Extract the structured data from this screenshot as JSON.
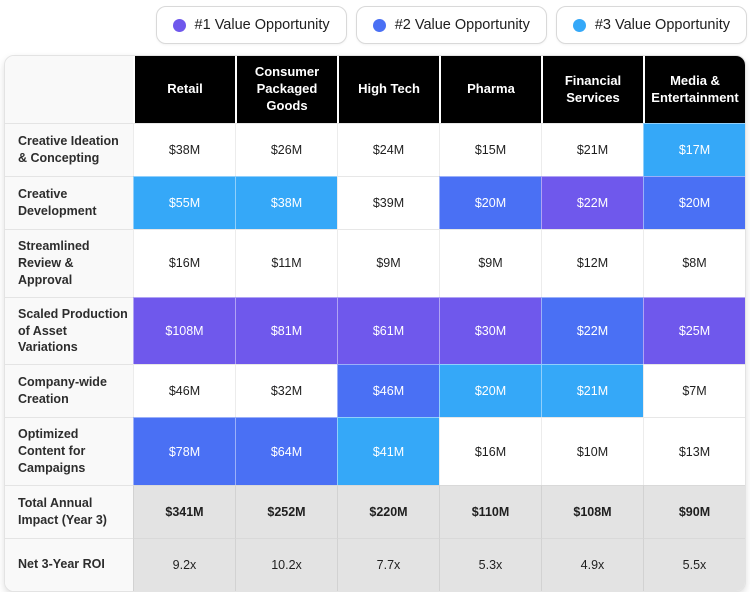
{
  "chart_data": {
    "type": "table",
    "legend": [
      {
        "label": "#1 Value Opportunity",
        "color": "#6F58EC"
      },
      {
        "label": "#2 Value Opportunity",
        "color": "#4A70F4"
      },
      {
        "label": "#3 Value Opportunity",
        "color": "#35A8F8"
      }
    ],
    "columns": [
      "Retail",
      "Consumer Packaged Goods",
      "High Tech",
      "Pharma",
      "Financial Services",
      "Media & Entertainment"
    ],
    "rows": [
      {
        "label": "Creative Ideation & Concepting",
        "values": [
          "$38M",
          "$26M",
          "$24M",
          "$15M",
          "$21M",
          "$17M"
        ],
        "tiers": [
          null,
          null,
          null,
          null,
          null,
          3
        ]
      },
      {
        "label": "Creative Development",
        "values": [
          "$55M",
          "$38M",
          "$39M",
          "$20M",
          "$22M",
          "$20M"
        ],
        "tiers": [
          3,
          3,
          null,
          2,
          1,
          2
        ]
      },
      {
        "label": "Streamlined Review & Approval",
        "values": [
          "$16M",
          "$11M",
          "$9M",
          "$9M",
          "$12M",
          "$8M"
        ],
        "tiers": [
          null,
          null,
          null,
          null,
          null,
          null
        ]
      },
      {
        "label": "Scaled Production of Asset Variations",
        "values": [
          "$108M",
          "$81M",
          "$61M",
          "$30M",
          "$22M",
          "$25M"
        ],
        "tiers": [
          1,
          1,
          1,
          1,
          2,
          1
        ]
      },
      {
        "label": "Company-wide Creation",
        "values": [
          "$46M",
          "$32M",
          "$46M",
          "$20M",
          "$21M",
          "$7M"
        ],
        "tiers": [
          null,
          null,
          2,
          3,
          3,
          null
        ]
      },
      {
        "label": "Optimized Content for Campaigns",
        "values": [
          "$78M",
          "$64M",
          "$41M",
          "$16M",
          "$10M",
          "$13M"
        ],
        "tiers": [
          2,
          2,
          3,
          null,
          null,
          null
        ]
      }
    ],
    "summary_rows": [
      {
        "label": "Total Annual Impact (Year 3)",
        "values": [
          "$341M",
          "$252M",
          "$220M",
          "$110M",
          "$108M",
          "$90M"
        ],
        "bold": true
      },
      {
        "label": "Net 3-Year ROI",
        "values": [
          "9.2x",
          "10.2x",
          "7.7x",
          "5.3x",
          "4.9x",
          "5.5x"
        ],
        "bold": false
      }
    ],
    "colors": {
      "tier1": "#6F58EC",
      "tier2": "#4A70F4",
      "tier3": "#35A8F8",
      "header_bg": "#000000",
      "label_column_bg": "#f9f9f9",
      "summary_bg": "#e3e3e3"
    },
    "layout": {
      "legend_position": "top-right",
      "grid": true
    }
  }
}
